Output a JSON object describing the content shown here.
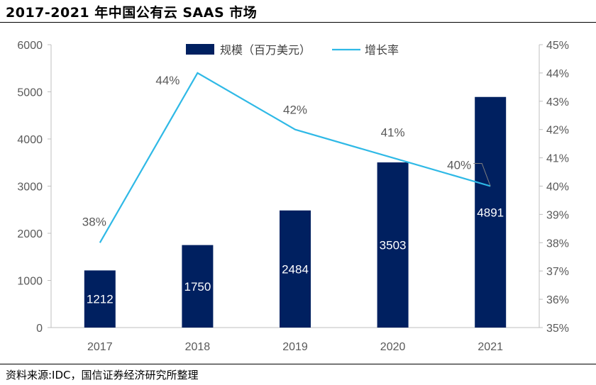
{
  "title": "2017-2021 年中国公有云 SAAS 市场",
  "source": "资料来源:IDC，国信证券经济研究所整理",
  "chart_data": {
    "type": "bar",
    "categories": [
      "2017",
      "2018",
      "2019",
      "2020",
      "2021"
    ],
    "series": [
      {
        "name": "规模（百万美元）",
        "type": "bar",
        "axis": "left",
        "values": [
          1212,
          1750,
          2484,
          3503,
          4891
        ],
        "labels": [
          "1212",
          "1750",
          "2484",
          "3503",
          "4891"
        ],
        "color": "#002060"
      },
      {
        "name": "增长率",
        "type": "line",
        "axis": "right",
        "values": [
          38,
          44,
          42,
          41,
          40
        ],
        "labels": [
          "38%",
          "44%",
          "42%",
          "41%",
          "40%"
        ],
        "color": "#2FB9E6"
      }
    ],
    "y_left": {
      "min": 0,
      "max": 6000,
      "ticks": [
        "0",
        "1000",
        "2000",
        "3000",
        "4000",
        "5000",
        "6000"
      ]
    },
    "y_right": {
      "min": 35,
      "max": 45,
      "ticks": [
        "35%",
        "36%",
        "37%",
        "38%",
        "39%",
        "40%",
        "41%",
        "42%",
        "43%",
        "44%",
        "45%"
      ]
    },
    "legend_position": "top"
  }
}
